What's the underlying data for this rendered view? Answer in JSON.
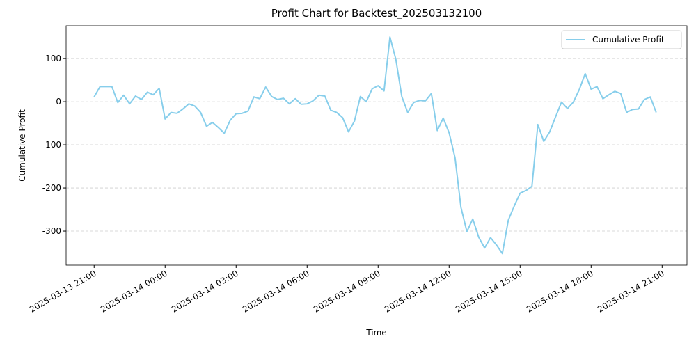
{
  "chart_data": {
    "type": "line",
    "title": "Profit Chart for Backtest_202503132100",
    "x_label": "Time",
    "y_label": "Cumulative Profit",
    "x": [
      "2025-03-13 21:00",
      "2025-03-13 21:15",
      "2025-03-13 21:30",
      "2025-03-13 21:45",
      "2025-03-13 22:00",
      "2025-03-13 22:15",
      "2025-03-13 22:30",
      "2025-03-13 22:45",
      "2025-03-13 23:00",
      "2025-03-13 23:15",
      "2025-03-13 23:30",
      "2025-03-13 23:45",
      "2025-03-14 00:00",
      "2025-03-14 00:15",
      "2025-03-14 00:30",
      "2025-03-14 00:45",
      "2025-03-14 01:00",
      "2025-03-14 01:15",
      "2025-03-14 01:30",
      "2025-03-14 01:45",
      "2025-03-14 02:00",
      "2025-03-14 02:15",
      "2025-03-14 02:30",
      "2025-03-14 02:45",
      "2025-03-14 03:00",
      "2025-03-14 03:15",
      "2025-03-14 03:30",
      "2025-03-14 03:45",
      "2025-03-14 04:00",
      "2025-03-14 04:15",
      "2025-03-14 04:30",
      "2025-03-14 04:45",
      "2025-03-14 05:00",
      "2025-03-14 05:15",
      "2025-03-14 05:30",
      "2025-03-14 05:45",
      "2025-03-14 06:00",
      "2025-03-14 06:15",
      "2025-03-14 06:30",
      "2025-03-14 06:45",
      "2025-03-14 07:00",
      "2025-03-14 07:15",
      "2025-03-14 07:30",
      "2025-03-14 07:45",
      "2025-03-14 08:00",
      "2025-03-14 08:15",
      "2025-03-14 08:30",
      "2025-03-14 08:45",
      "2025-03-14 09:00",
      "2025-03-14 09:15",
      "2025-03-14 09:30",
      "2025-03-14 09:45",
      "2025-03-14 10:00",
      "2025-03-14 10:15",
      "2025-03-14 10:30",
      "2025-03-14 10:45",
      "2025-03-14 11:00",
      "2025-03-14 11:15",
      "2025-03-14 11:30",
      "2025-03-14 11:45",
      "2025-03-14 12:00",
      "2025-03-14 12:15",
      "2025-03-14 12:30",
      "2025-03-14 12:45",
      "2025-03-14 13:00",
      "2025-03-14 13:15",
      "2025-03-14 13:30",
      "2025-03-14 13:45",
      "2025-03-14 14:00",
      "2025-03-14 14:15",
      "2025-03-14 14:30",
      "2025-03-14 14:45",
      "2025-03-14 15:00",
      "2025-03-14 15:15",
      "2025-03-14 15:30",
      "2025-03-14 15:45",
      "2025-03-14 16:00",
      "2025-03-14 16:15",
      "2025-03-14 16:30",
      "2025-03-14 16:45",
      "2025-03-14 17:00",
      "2025-03-14 17:15",
      "2025-03-14 17:30",
      "2025-03-14 17:45",
      "2025-03-14 18:00",
      "2025-03-14 18:15",
      "2025-03-14 18:30",
      "2025-03-14 18:45",
      "2025-03-14 19:00",
      "2025-03-14 19:15",
      "2025-03-14 19:30",
      "2025-03-14 19:45",
      "2025-03-14 20:00",
      "2025-03-14 20:15",
      "2025-03-14 20:30",
      "2025-03-14 20:45"
    ],
    "series": [
      {
        "name": "Cumulative Profit",
        "color": "#87ceeb",
        "values": [
          11,
          35,
          35,
          35,
          -2,
          15,
          -5,
          13,
          5,
          22,
          16,
          31,
          -40,
          -25,
          -27,
          -17,
          -5,
          -10,
          -25,
          -57,
          -48,
          -60,
          -73,
          -43,
          -28,
          -27,
          -22,
          11,
          7,
          34,
          12,
          5,
          8,
          -5,
          7,
          -6,
          -5,
          2,
          15,
          13,
          -20,
          -25,
          -37,
          -70,
          -45,
          12,
          0,
          30,
          37,
          25,
          150,
          98,
          12,
          -25,
          -2,
          3,
          2,
          19,
          -67,
          -38,
          -72,
          -130,
          -245,
          -301,
          -272,
          -314,
          -339,
          -315,
          -332,
          -352,
          -275,
          -242,
          -212,
          -206,
          -196,
          -53,
          -92,
          -70,
          -35,
          -1,
          -16,
          -1,
          28,
          65,
          29,
          35,
          7,
          16,
          24,
          19,
          -25,
          -18,
          -17,
          5,
          11,
          -25
        ]
      }
    ],
    "xlim": [
      "2025-03-13 19:49",
      "2025-03-14 22:03"
    ],
    "xticks": [
      "2025-03-13 21:00",
      "2025-03-14 00:00",
      "2025-03-14 03:00",
      "2025-03-14 06:00",
      "2025-03-14 09:00",
      "2025-03-14 12:00",
      "2025-03-14 15:00",
      "2025-03-14 18:00",
      "2025-03-14 21:00"
    ],
    "ylim": [
      -379,
      176
    ],
    "yticks": [
      -300,
      -200,
      -100,
      0,
      100
    ],
    "grid": "y",
    "legend": "upper right"
  }
}
